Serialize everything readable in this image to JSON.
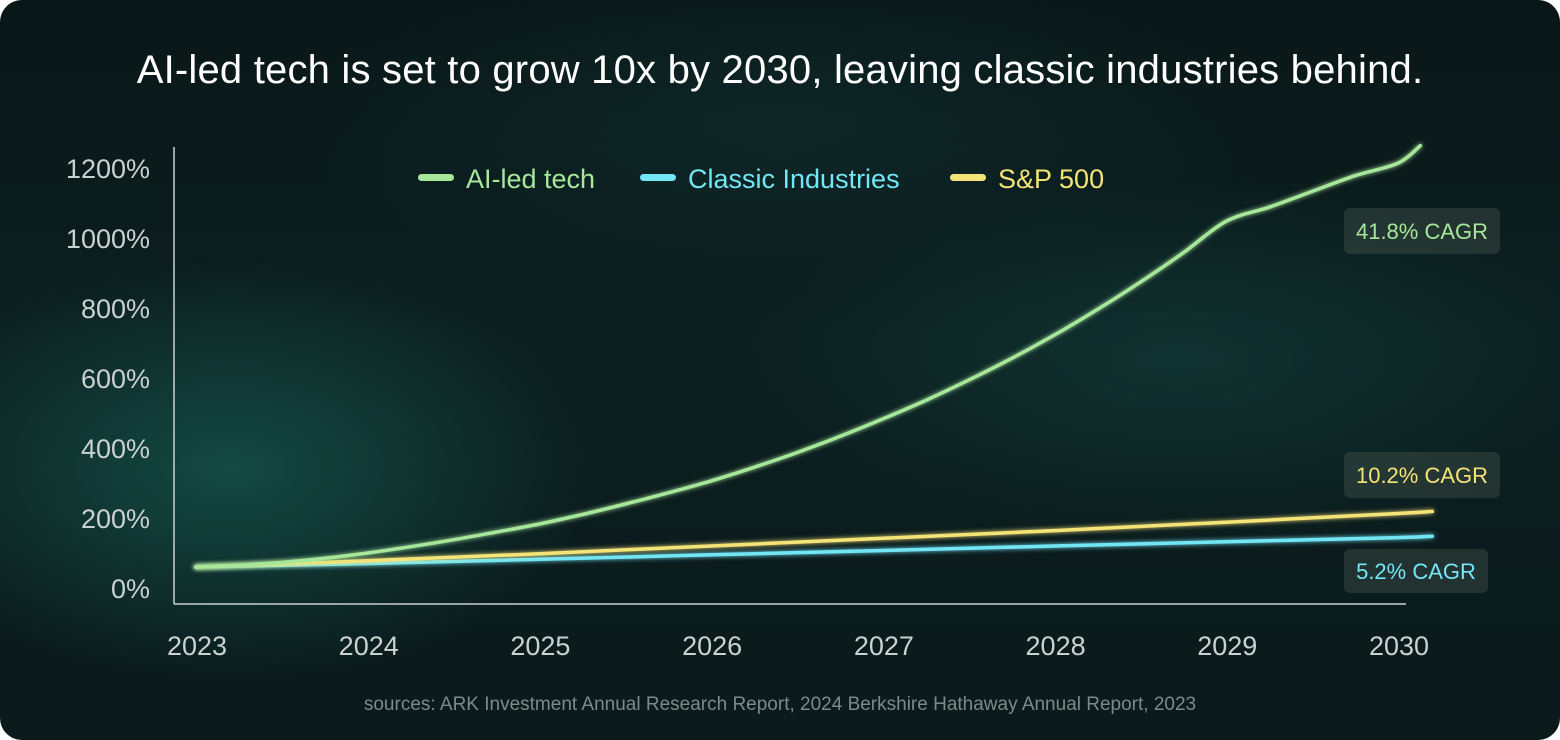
{
  "title": "AI-led tech is set to grow 10x by 2030, leaving classic industries behind.",
  "source_note": "sources: ARK Investment Annual Research Report, 2024 Berkshire Hathaway Annual Report, 2023",
  "colors": {
    "ai": "#a6e79a",
    "classic": "#72e6f5",
    "sp500": "#f4e377",
    "axis": "#c9d1d1"
  },
  "chart_data": {
    "type": "line",
    "title": "AI-led tech is set to grow 10x by 2030, leaving classic industries behind.",
    "xlabel": "",
    "ylabel": "",
    "x": [
      2023,
      2024,
      2025,
      2026,
      2027,
      2028,
      2029,
      2030
    ],
    "x_tick_labels": [
      "2023",
      "2024",
      "2025",
      "2026",
      "2027",
      "2028",
      "2029",
      "2030"
    ],
    "x_range": [
      2023,
      2030.25
    ],
    "ylim": [
      -50,
      1260
    ],
    "y_ticks": [
      0,
      200,
      400,
      600,
      800,
      1000,
      1200
    ],
    "y_tick_labels": [
      "0%",
      "200%",
      "400%",
      "600%",
      "800%",
      "1000%",
      "1200%"
    ],
    "grid": false,
    "legend_position": "top-center",
    "series": [
      {
        "name": "AI-led tech",
        "color_key": "ai",
        "label": "41.8% CAGR",
        "x": [
          2023,
          2023.25,
          2023.5,
          2023.75,
          2024,
          2024.25,
          2024.5,
          2024.75,
          2025,
          2025.25,
          2025.5,
          2025.75,
          2026,
          2026.25,
          2026.5,
          2026.75,
          2027,
          2027.25,
          2027.5,
          2027.75,
          2028,
          2028.25,
          2028.5,
          2028.75,
          2029,
          2029.25,
          2029.5,
          2029.75,
          2030,
          2030.13
        ],
        "values": [
          60,
          65,
          73,
          85,
          100,
          118,
          138,
          160,
          183,
          210,
          240,
          272,
          306,
          345,
          387,
          433,
          483,
          536,
          594,
          656,
          723,
          796,
          874,
          958,
          1048,
          1088,
          1133,
          1178,
          1214,
          1264
        ]
      },
      {
        "name": "Classic Industries",
        "color_key": "classic",
        "label": "5.2% CAGR",
        "x": [
          2023,
          2024,
          2025,
          2026,
          2027,
          2028,
          2029,
          2030,
          2030.2
        ],
        "values": [
          60,
          70,
          82,
          95,
          107,
          120,
          132,
          144,
          148
        ]
      },
      {
        "name": "S&P 500",
        "color_key": "sp500",
        "label": "10.2% CAGR",
        "x": [
          2023,
          2024,
          2025,
          2026,
          2027,
          2028,
          2029,
          2030,
          2030.2
        ],
        "values": [
          60,
          78,
          98,
          120,
          142,
          164,
          188,
          213,
          219
        ]
      }
    ]
  }
}
